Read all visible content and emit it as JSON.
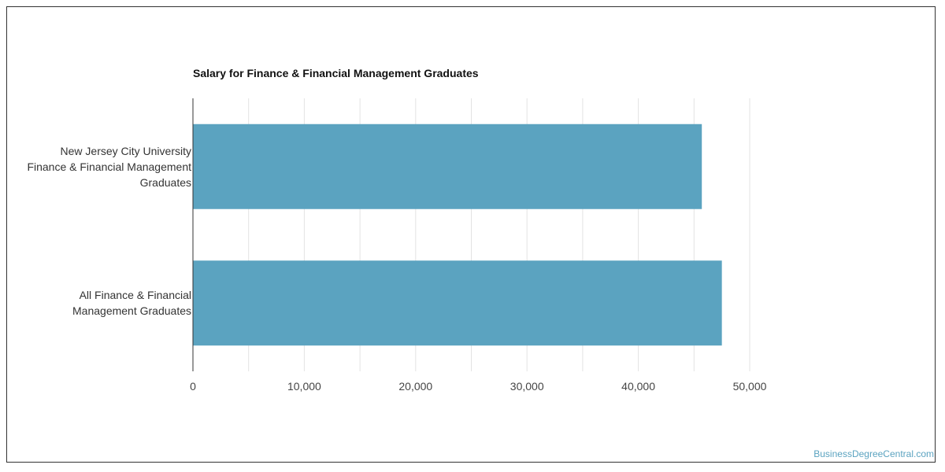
{
  "chart_data": {
    "type": "bar",
    "orientation": "horizontal",
    "title": "Salary for Finance & Financial Management Graduates",
    "categories": [
      [
        "New Jersey City University",
        "Finance & Financial Management",
        "Graduates"
      ],
      [
        "All Finance & Financial",
        "Management Graduates"
      ]
    ],
    "values": [
      45700,
      47500
    ],
    "xlim": [
      0,
      50000
    ],
    "xticks": [
      0,
      10000,
      20000,
      30000,
      40000,
      50000
    ],
    "xtick_labels": [
      "0",
      "10,000",
      "20,000",
      "30,000",
      "40,000",
      "50,000"
    ],
    "bar_color": "#5ba3c0",
    "grid": true
  },
  "source_link": "BusinessDegreeCentral.com"
}
